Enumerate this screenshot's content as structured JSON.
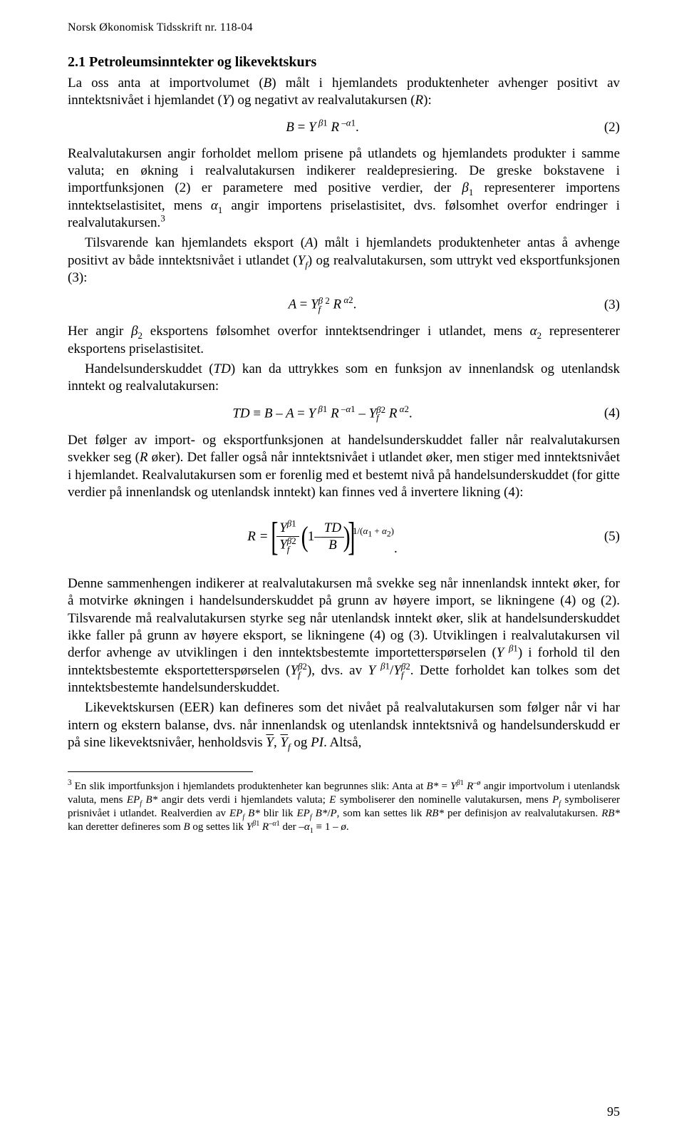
{
  "header": {
    "journal": "Norsk Økonomisk Tidsskrift nr. 118-04"
  },
  "section": {
    "number_title": "2.1 Petroleumsinntekter og likevektskurs"
  },
  "paragraphs": {
    "p1": "La oss anta at importvolumet (B) målt i hjemlandets produktenheter avhenger positivt av inntektsnivået i hjemlandet (Y) og negativt av realvalutakursen (R):",
    "p4_pre": "Her angir ",
    "p4_post": " representerer eksportens priselastisitet.",
    "p4_mid": " eksportens følsomhet overfor inntektsendringer i utlandet, mens ",
    "p5": "Handelsunderskuddet (TD) kan da uttrykkes som en funksjon av innenlandsk og utenlandsk inntekt og realvalutakursen:",
    "p6": "Det følger av import- og eksportfunksjonen at handelsunderskuddet faller når realvalutakursen svekker seg (R øker). Det faller også når inntektsnivået i utlandet øker, men stiger med inntektsnivået i hjemlandet. Realvalutakursen som er forenlig med et bestemt nivå på handelsunderskuddet (for gitte verdier på innenlandsk og utenlandsk inntekt) kan finnes ved å invertere likning (4):"
  },
  "equations": {
    "eq2_num": "(2)",
    "eq3_num": "(3)",
    "eq4_num": "(4)",
    "eq5_num": "(5)"
  },
  "pagenum": "95"
}
